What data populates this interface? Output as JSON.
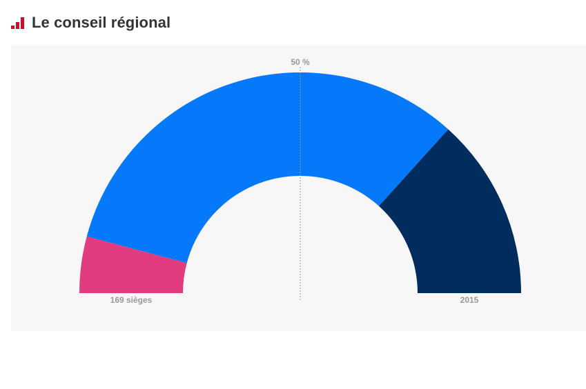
{
  "header": {
    "title": "Le conseil régional",
    "icon": "bar-chart-icon",
    "icon_color": "#c8102e"
  },
  "chart_data": {
    "type": "pie",
    "layout": "semicircle",
    "total_seats": 169,
    "seats_label": "169 sièges",
    "year_label": "2015",
    "majority_label": "50 %",
    "slices": [
      {
        "value": 14,
        "color": "#e03c7f"
      },
      {
        "value": 110,
        "color": "#0579fa"
      },
      {
        "value": 45,
        "color": "#002d5e"
      }
    ]
  }
}
